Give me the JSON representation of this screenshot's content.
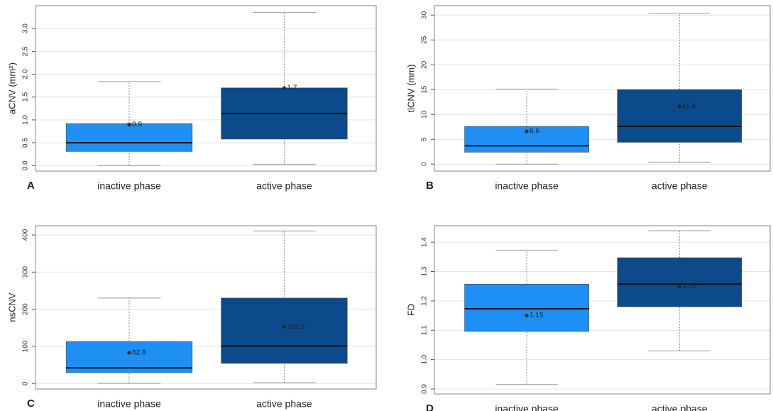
{
  "chart_data": [
    {
      "type": "box",
      "panel_label": "A",
      "ylabel": "aCNV (mm²)",
      "categories": [
        "inactive phase",
        "active phase"
      ],
      "colors": [
        "#1e90f5",
        "#0d4a8c"
      ],
      "boxes": [
        {
          "low": 0.0,
          "q1": 0.31,
          "median": 0.5,
          "q3": 0.92,
          "high": 1.84
        },
        {
          "low": 0.03,
          "q1": 0.58,
          "median": 1.14,
          "q3": 1.7,
          "high": 3.35
        }
      ],
      "means": [
        0.9,
        1.7
      ],
      "ylim": [
        -0.12,
        3.5
      ],
      "yticks": [
        {
          "value": 0,
          "label": "0.0"
        },
        0.5,
        {
          "value": 1,
          "label": "1.0"
        },
        1.5,
        {
          "value": 2,
          "label": "2.0"
        },
        2.5,
        {
          "value": 3,
          "label": "3.0"
        }
      ],
      "grid": true
    },
    {
      "type": "box",
      "panel_label": "B",
      "ylabel": "tlCNV (mm)",
      "categories": [
        "inactive phase",
        "active phase"
      ],
      "colors": [
        "#1e90f5",
        "#0d4a8c"
      ],
      "boxes": [
        {
          "low": 0,
          "q1": 2.4,
          "median": 3.7,
          "q3": 7.6,
          "high": 15.1
        },
        {
          "low": 0.4,
          "q1": 4.4,
          "median": 7.6,
          "q3": 15.0,
          "high": 30.4
        }
      ],
      "means": [
        6.6,
        11.6
      ],
      "ylim": [
        -1.4,
        31.9
      ],
      "yticks": [
        0,
        5,
        10,
        15,
        20,
        25,
        30
      ],
      "grid": true
    },
    {
      "type": "box",
      "panel_label": "C",
      "ylabel": "nsCNV",
      "categories": [
        "inactive phase",
        "active phase"
      ],
      "colors": [
        "#1e90f5",
        "#0d4a8c"
      ],
      "boxes": [
        {
          "low": 0,
          "q1": 29,
          "median": 42,
          "q3": 113,
          "high": 230
        },
        {
          "low": 2,
          "q1": 54,
          "median": 101,
          "q3": 230,
          "high": 411
        }
      ],
      "means": [
        82.8,
        152.6
      ],
      "ylim": [
        -15,
        425
      ],
      "yticks": [
        0,
        100,
        200,
        300,
        400
      ],
      "grid": true
    },
    {
      "type": "box",
      "panel_label": "D",
      "ylabel": "FD",
      "categories": [
        "inactive phase",
        "active phase"
      ],
      "colors": [
        "#1e90f5",
        "#0d4a8c"
      ],
      "boxes": [
        {
          "low": 0.915,
          "q1": 1.096,
          "median": 1.173,
          "q3": 1.257,
          "high": 1.373
        },
        {
          "low": 1.03,
          "q1": 1.18,
          "median": 1.257,
          "q3": 1.347,
          "high": 1.439
        }
      ],
      "means": [
        1.15,
        1.25
      ],
      "ylim": [
        0.883,
        1.456
      ],
      "yticks": [
        0.9,
        {
          "value": 1,
          "label": "1.0"
        },
        1.1,
        1.2,
        1.3,
        1.4
      ],
      "grid": true
    }
  ]
}
